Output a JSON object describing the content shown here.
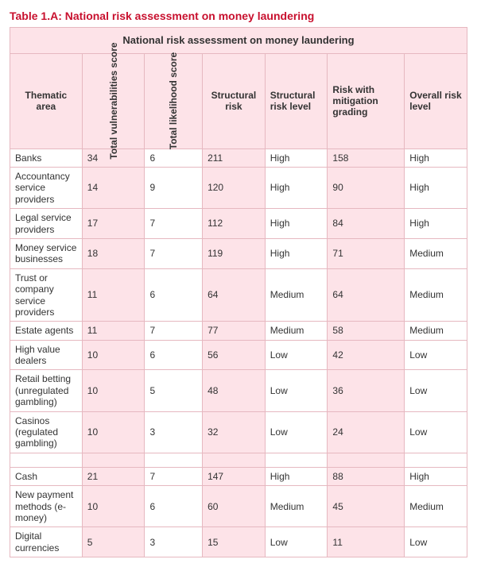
{
  "caption": "Table 1.A: National risk assessment on money laundering",
  "banner": "National risk assessment on money laundering",
  "columns": {
    "c0": "Thematic area",
    "c1": "Total vulnerabilities score",
    "c2": "Total likelihood score",
    "c3": "Structural risk",
    "c4": "Structural risk level",
    "c5": "Risk with mitigation grading",
    "c6": "Overall risk level"
  },
  "shaded_columns": [
    1,
    3,
    5
  ],
  "colors": {
    "caption": "#c8102e",
    "shade": "#fde3e8",
    "border": "#e6b8c0",
    "text": "#333333",
    "background": "#ffffff"
  },
  "typography": {
    "font_family": "Arial, Helvetica, sans-serif",
    "caption_fontsize_pt": 11,
    "body_fontsize_pt": 9
  },
  "col_widths_pct": [
    15,
    13,
    12,
    13,
    13,
    16,
    13
  ],
  "groups": [
    {
      "rows": [
        {
          "area": "Banks",
          "vuln": "34",
          "like": "6",
          "srisk": "211",
          "slevel": "High",
          "mit": "158",
          "overall": "High"
        },
        {
          "area": "Accountancy service providers",
          "vuln": "14",
          "like": "9",
          "srisk": "120",
          "slevel": "High",
          "mit": "90",
          "overall": "High"
        },
        {
          "area": "Legal service providers",
          "vuln": "17",
          "like": "7",
          "srisk": "112",
          "slevel": "High",
          "mit": "84",
          "overall": "High"
        },
        {
          "area": "Money service businesses",
          "vuln": "18",
          "like": "7",
          "srisk": "119",
          "slevel": "High",
          "mit": "71",
          "overall": "Medium"
        },
        {
          "area": "Trust or company service providers",
          "vuln": "11",
          "like": "6",
          "srisk": "64",
          "slevel": "Medium",
          "mit": "64",
          "overall": "Medium"
        },
        {
          "area": "Estate agents",
          "vuln": "11",
          "like": "7",
          "srisk": "77",
          "slevel": "Medium",
          "mit": "58",
          "overall": "Medium"
        },
        {
          "area": "High value dealers",
          "vuln": "10",
          "like": "6",
          "srisk": "56",
          "slevel": "Low",
          "mit": "42",
          "overall": "Low"
        },
        {
          "area": "Retail betting (unregulated gambling)",
          "vuln": "10",
          "like": "5",
          "srisk": "48",
          "slevel": "Low",
          "mit": "36",
          "overall": "Low"
        },
        {
          "area": "Casinos (regulated gambling)",
          "vuln": "10",
          "like": "3",
          "srisk": "32",
          "slevel": "Low",
          "mit": "24",
          "overall": "Low"
        }
      ]
    },
    {
      "rows": [
        {
          "area": "Cash",
          "vuln": "21",
          "like": "7",
          "srisk": "147",
          "slevel": "High",
          "mit": "88",
          "overall": "High"
        },
        {
          "area": "New payment methods (e-money)",
          "vuln": "10",
          "like": "6",
          "srisk": "60",
          "slevel": "Medium",
          "mit": "45",
          "overall": "Medium"
        },
        {
          "area": "Digital currencies",
          "vuln": "5",
          "like": "3",
          "srisk": "15",
          "slevel": "Low",
          "mit": "11",
          "overall": "Low"
        }
      ]
    }
  ]
}
